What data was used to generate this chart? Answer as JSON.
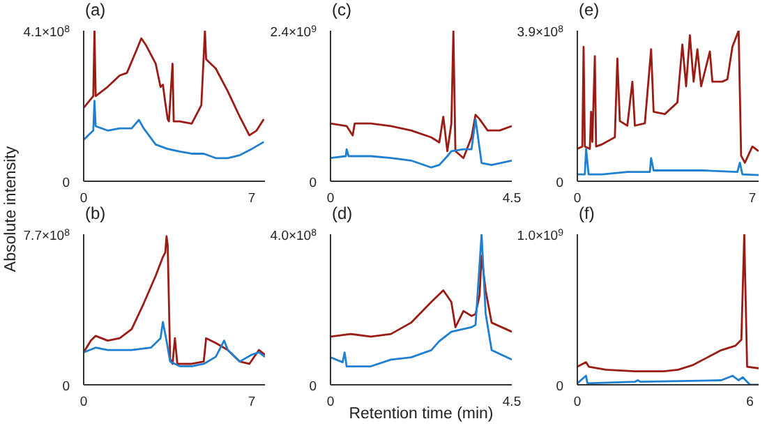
{
  "chart_data": [
    {
      "type": "line",
      "title": "(a)",
      "ylabel": "Absolute intensity",
      "xlim": [
        0,
        7.55
      ],
      "xticks": [
        0,
        7
      ],
      "ylim": [
        0,
        410000000.0
      ],
      "yticks": [
        {
          "value": 0,
          "label": "0"
        },
        {
          "value": 410000000.0,
          "label": "4.1×10$^{8}$"
        }
      ],
      "series": [
        {
          "color": "#9b1c14",
          "x": [
            0,
            0.4,
            0.45,
            0.5,
            1.0,
            1.5,
            1.8,
            2.2,
            2.4,
            2.6,
            3.0,
            3.2,
            3.3,
            3.4,
            3.5,
            3.55,
            3.7,
            3.75,
            4.0,
            4.5,
            4.9,
            5.05,
            5.1,
            5.5,
            6.0,
            6.5,
            6.9,
            7.2,
            7.5
          ],
          "values": [
            200000000.0,
            232000000.0,
            410000000.0,
            232000000.0,
            257000000.0,
            288000000.0,
            295000000.0,
            357000000.0,
            389000000.0,
            370000000.0,
            320000000.0,
            257000000.0,
            263000000.0,
            213000000.0,
            169000000.0,
            163000000.0,
            320000000.0,
            163000000.0,
            163000000.0,
            157000000.0,
            207000000.0,
            410000000.0,
            332000000.0,
            307000000.0,
            245000000.0,
            176000000.0,
            125000000.0,
            138000000.0,
            169000000.0
          ]
        },
        {
          "color": "#1f7fd0",
          "x": [
            0,
            0.4,
            0.45,
            0.5,
            1.0,
            1.5,
            2.0,
            2.3,
            2.5,
            3.0,
            3.5,
            4.0,
            4.5,
            5.0,
            5.5,
            6.0,
            6.5,
            7.0,
            7.5
          ],
          "values": [
            113000000.0,
            138000000.0,
            219000000.0,
            150000000.0,
            138000000.0,
            144000000.0,
            144000000.0,
            167000000.0,
            144000000.0,
            100000000.0,
            88000000.0,
            81000000.0,
            75000000.0,
            75000000.0,
            63000000.0,
            63000000.0,
            71000000.0,
            88000000.0,
            107000000.0
          ]
        }
      ]
    },
    {
      "type": "line",
      "title": "(b)",
      "xlim": [
        0,
        7.55
      ],
      "xticks": [
        0,
        7
      ],
      "ylim": [
        0,
        770000000.0
      ],
      "yticks": [
        {
          "value": 0,
          "label": "0"
        },
        {
          "value": 770000000.0,
          "label": "7.7×10$^{8}$"
        }
      ],
      "series": [
        {
          "color": "#9b1c14",
          "x": [
            0,
            0.3,
            0.5,
            1.0,
            1.5,
            2.0,
            2.5,
            3.0,
            3.3,
            3.4,
            3.45,
            3.5,
            3.6,
            3.7,
            3.8,
            3.9,
            4.5,
            5.0,
            5.1,
            5.5,
            6.0,
            6.5,
            6.9,
            7.3,
            7.55
          ],
          "values": [
            166000000.0,
            226000000.0,
            250000000.0,
            226000000.0,
            238000000.0,
            285000000.0,
            416000000.0,
            558000000.0,
            654000000.0,
            677000000.0,
            760000000.0,
            713000000.0,
            131000000.0,
            107000000.0,
            238000000.0,
            107000000.0,
            107000000.0,
            119000000.0,
            238000000.0,
            214000000.0,
            178000000.0,
            119000000.0,
            107000000.0,
            178000000.0,
            154000000.0
          ]
        },
        {
          "color": "#1f7fd0",
          "x": [
            0,
            0.5,
            1.0,
            2.0,
            2.8,
            3.2,
            3.3,
            3.45,
            3.6,
            4.0,
            4.5,
            5.0,
            5.5,
            5.85,
            6.0,
            6.5,
            7.0,
            7.3,
            7.55
          ],
          "values": [
            166000000.0,
            190000000.0,
            178000000.0,
            178000000.0,
            190000000.0,
            238000000.0,
            321000000.0,
            226000000.0,
            119000000.0,
            95000000.0,
            95000000.0,
            107000000.0,
            143000000.0,
            226000000.0,
            178000000.0,
            119000000.0,
            154000000.0,
            166000000.0,
            143000000.0
          ]
        }
      ]
    },
    {
      "type": "line",
      "title": "(c)",
      "xlim": [
        0,
        4.5
      ],
      "xticks": [
        0,
        4.5
      ],
      "ylim": [
        0,
        2400000000.0
      ],
      "yticks": [
        {
          "value": 0,
          "label": "0"
        },
        {
          "value": 2400000000.0,
          "label": "2.4×10$^{9}$"
        }
      ],
      "series": [
        {
          "color": "#9b1c14",
          "x": [
            0,
            0.4,
            0.55,
            0.6,
            1.0,
            1.5,
            2.0,
            2.5,
            2.7,
            2.8,
            2.9,
            3.0,
            3.05,
            3.1,
            3.3,
            3.5,
            3.6,
            3.7,
            3.9,
            4.2,
            4.5
          ],
          "values": [
            920000000.0,
            880000000.0,
            730000000.0,
            920000000.0,
            920000000.0,
            880000000.0,
            810000000.0,
            700000000.0,
            620000000.0,
            1030000000.0,
            480000000.0,
            920000000.0,
            2400000000.0,
            480000000.0,
            370000000.0,
            700000000.0,
            1060000000.0,
            990000000.0,
            810000000.0,
            810000000.0,
            880000000.0
          ]
        },
        {
          "color": "#1f7fd0",
          "x": [
            0,
            0.38,
            0.4,
            0.45,
            1.0,
            1.5,
            2.0,
            2.5,
            2.7,
            2.9,
            3.0,
            3.3,
            3.5,
            3.6,
            3.75,
            4.0,
            4.5
          ],
          "values": [
            370000000.0,
            400000000.0,
            510000000.0,
            400000000.0,
            400000000.0,
            370000000.0,
            330000000.0,
            220000000.0,
            260000000.0,
            400000000.0,
            480000000.0,
            510000000.0,
            510000000.0,
            990000000.0,
            290000000.0,
            260000000.0,
            330000000.0
          ]
        }
      ]
    },
    {
      "type": "line",
      "title": "(d)",
      "xlabel": "Retention time (min)",
      "xlim": [
        0,
        4.5
      ],
      "xticks": [
        0,
        4.5
      ],
      "ylim": [
        0,
        400000000.0
      ],
      "yticks": [
        {
          "value": 0,
          "label": "0"
        },
        {
          "value": 400000000.0,
          "label": "4.0×10$^{8}$"
        }
      ],
      "series": [
        {
          "color": "#9b1c14",
          "x": [
            0,
            0.5,
            1.0,
            1.5,
            2.0,
            2.5,
            2.8,
            3.0,
            3.1,
            3.3,
            3.5,
            3.6,
            3.7,
            3.75,
            3.85,
            4.0,
            4.5
          ],
          "values": [
            128000000.0,
            135000000.0,
            128000000.0,
            135000000.0,
            165000000.0,
            220000000.0,
            251000000.0,
            220000000.0,
            153000000.0,
            196000000.0,
            183000000.0,
            188000000.0,
            238000000.0,
            343000000.0,
            251000000.0,
            165000000.0,
            141000000.0
          ]
        },
        {
          "color": "#1f7fd0",
          "x": [
            0,
            0.3,
            0.35,
            0.4,
            1.0,
            1.5,
            2.0,
            2.5,
            2.7,
            3.0,
            3.5,
            3.6,
            3.75,
            3.85,
            4.0,
            4.5
          ],
          "values": [
            73000000.0,
            60000000.0,
            86000000.0,
            49000000.0,
            49000000.0,
            67000000.0,
            73000000.0,
            92000000.0,
            116000000.0,
            141000000.0,
            153000000.0,
            159000000.0,
            400000000.0,
            190000000.0,
            92000000.0,
            67000000.0
          ]
        }
      ]
    },
    {
      "type": "line",
      "title": "(e)",
      "xlim": [
        0,
        7.25
      ],
      "xticks": [
        0,
        7
      ],
      "ylim": [
        0,
        390000000.0
      ],
      "yticks": [
        {
          "value": 0,
          "label": "0"
        },
        {
          "value": 390000000.0,
          "label": "3.9×10$^{8}$"
        }
      ],
      "series": [
        {
          "color": "#9b1c14",
          "x": [
            0,
            0.2,
            0.25,
            0.3,
            0.5,
            0.55,
            0.6,
            0.7,
            0.75,
            1.0,
            1.5,
            1.6,
            1.7,
            2.0,
            2.2,
            2.3,
            2.7,
            2.95,
            3.05,
            3.5,
            4.0,
            4.2,
            4.35,
            4.5,
            4.65,
            4.8,
            4.95,
            5.3,
            5.4,
            5.8,
            6.0,
            6.2,
            6.45,
            6.55,
            6.7,
            7.0,
            7.25
          ],
          "values": [
            84000000.0,
            90000000.0,
            348000000.0,
            90000000.0,
            84000000.0,
            180000000.0,
            102000000.0,
            324000000.0,
            90000000.0,
            96000000.0,
            114000000.0,
            318000000.0,
            156000000.0,
            144000000.0,
            258000000.0,
            144000000.0,
            150000000.0,
            342000000.0,
            180000000.0,
            174000000.0,
            204000000.0,
            354000000.0,
            246000000.0,
            378000000.0,
            258000000.0,
            342000000.0,
            246000000.0,
            336000000.0,
            258000000.0,
            258000000.0,
            264000000.0,
            348000000.0,
            390000000.0,
            66000000.0,
            48000000.0,
            90000000.0,
            78000000.0
          ]
        },
        {
          "color": "#1f7fd0",
          "x": [
            0,
            0.3,
            0.35,
            0.45,
            1.0,
            2.0,
            2.9,
            2.95,
            3.05,
            4.0,
            5.0,
            6.4,
            6.5,
            6.6,
            7.25
          ],
          "values": [
            18000000.0,
            18000000.0,
            84000000.0,
            18000000.0,
            18000000.0,
            24000000.0,
            24000000.0,
            60000000.0,
            28000000.0,
            28000000.0,
            28000000.0,
            24000000.0,
            48000000.0,
            18000000.0,
            16000000.0
          ]
        }
      ]
    },
    {
      "type": "line",
      "title": "(f)",
      "xlim": [
        0,
        6.3
      ],
      "xticks": [
        0,
        6
      ],
      "ylim": [
        0,
        1000000000.0
      ],
      "yticks": [
        {
          "value": 0,
          "label": "0"
        },
        {
          "value": 1000000000.0,
          "label": "1.0×10$^{9}$"
        }
      ],
      "series": [
        {
          "color": "#9b1c14",
          "x": [
            0,
            0.3,
            0.4,
            1.0,
            2.0,
            3.0,
            3.5,
            4.0,
            4.5,
            5.0,
            5.5,
            5.7,
            5.8,
            5.9,
            6.3
          ],
          "values": [
            120000000.0,
            150000000.0,
            120000000.0,
            100000000.0,
            90000000.0,
            90000000.0,
            100000000.0,
            130000000.0,
            180000000.0,
            230000000.0,
            260000000.0,
            300000000.0,
            1000000000.0,
            120000000.0,
            110000000.0
          ]
        },
        {
          "color": "#1f7fd0",
          "x": [
            0,
            0.3,
            0.35,
            2.0,
            2.1,
            2.2,
            5.0,
            5.4,
            5.6,
            5.75,
            6.0,
            6.3
          ],
          "values": [
            10000000.0,
            60000000.0,
            10000000.0,
            20000000.0,
            30000000.0,
            20000000.0,
            30000000.0,
            60000000.0,
            30000000.0,
            50000000.0,
            0,
            0
          ]
        }
      ]
    }
  ]
}
